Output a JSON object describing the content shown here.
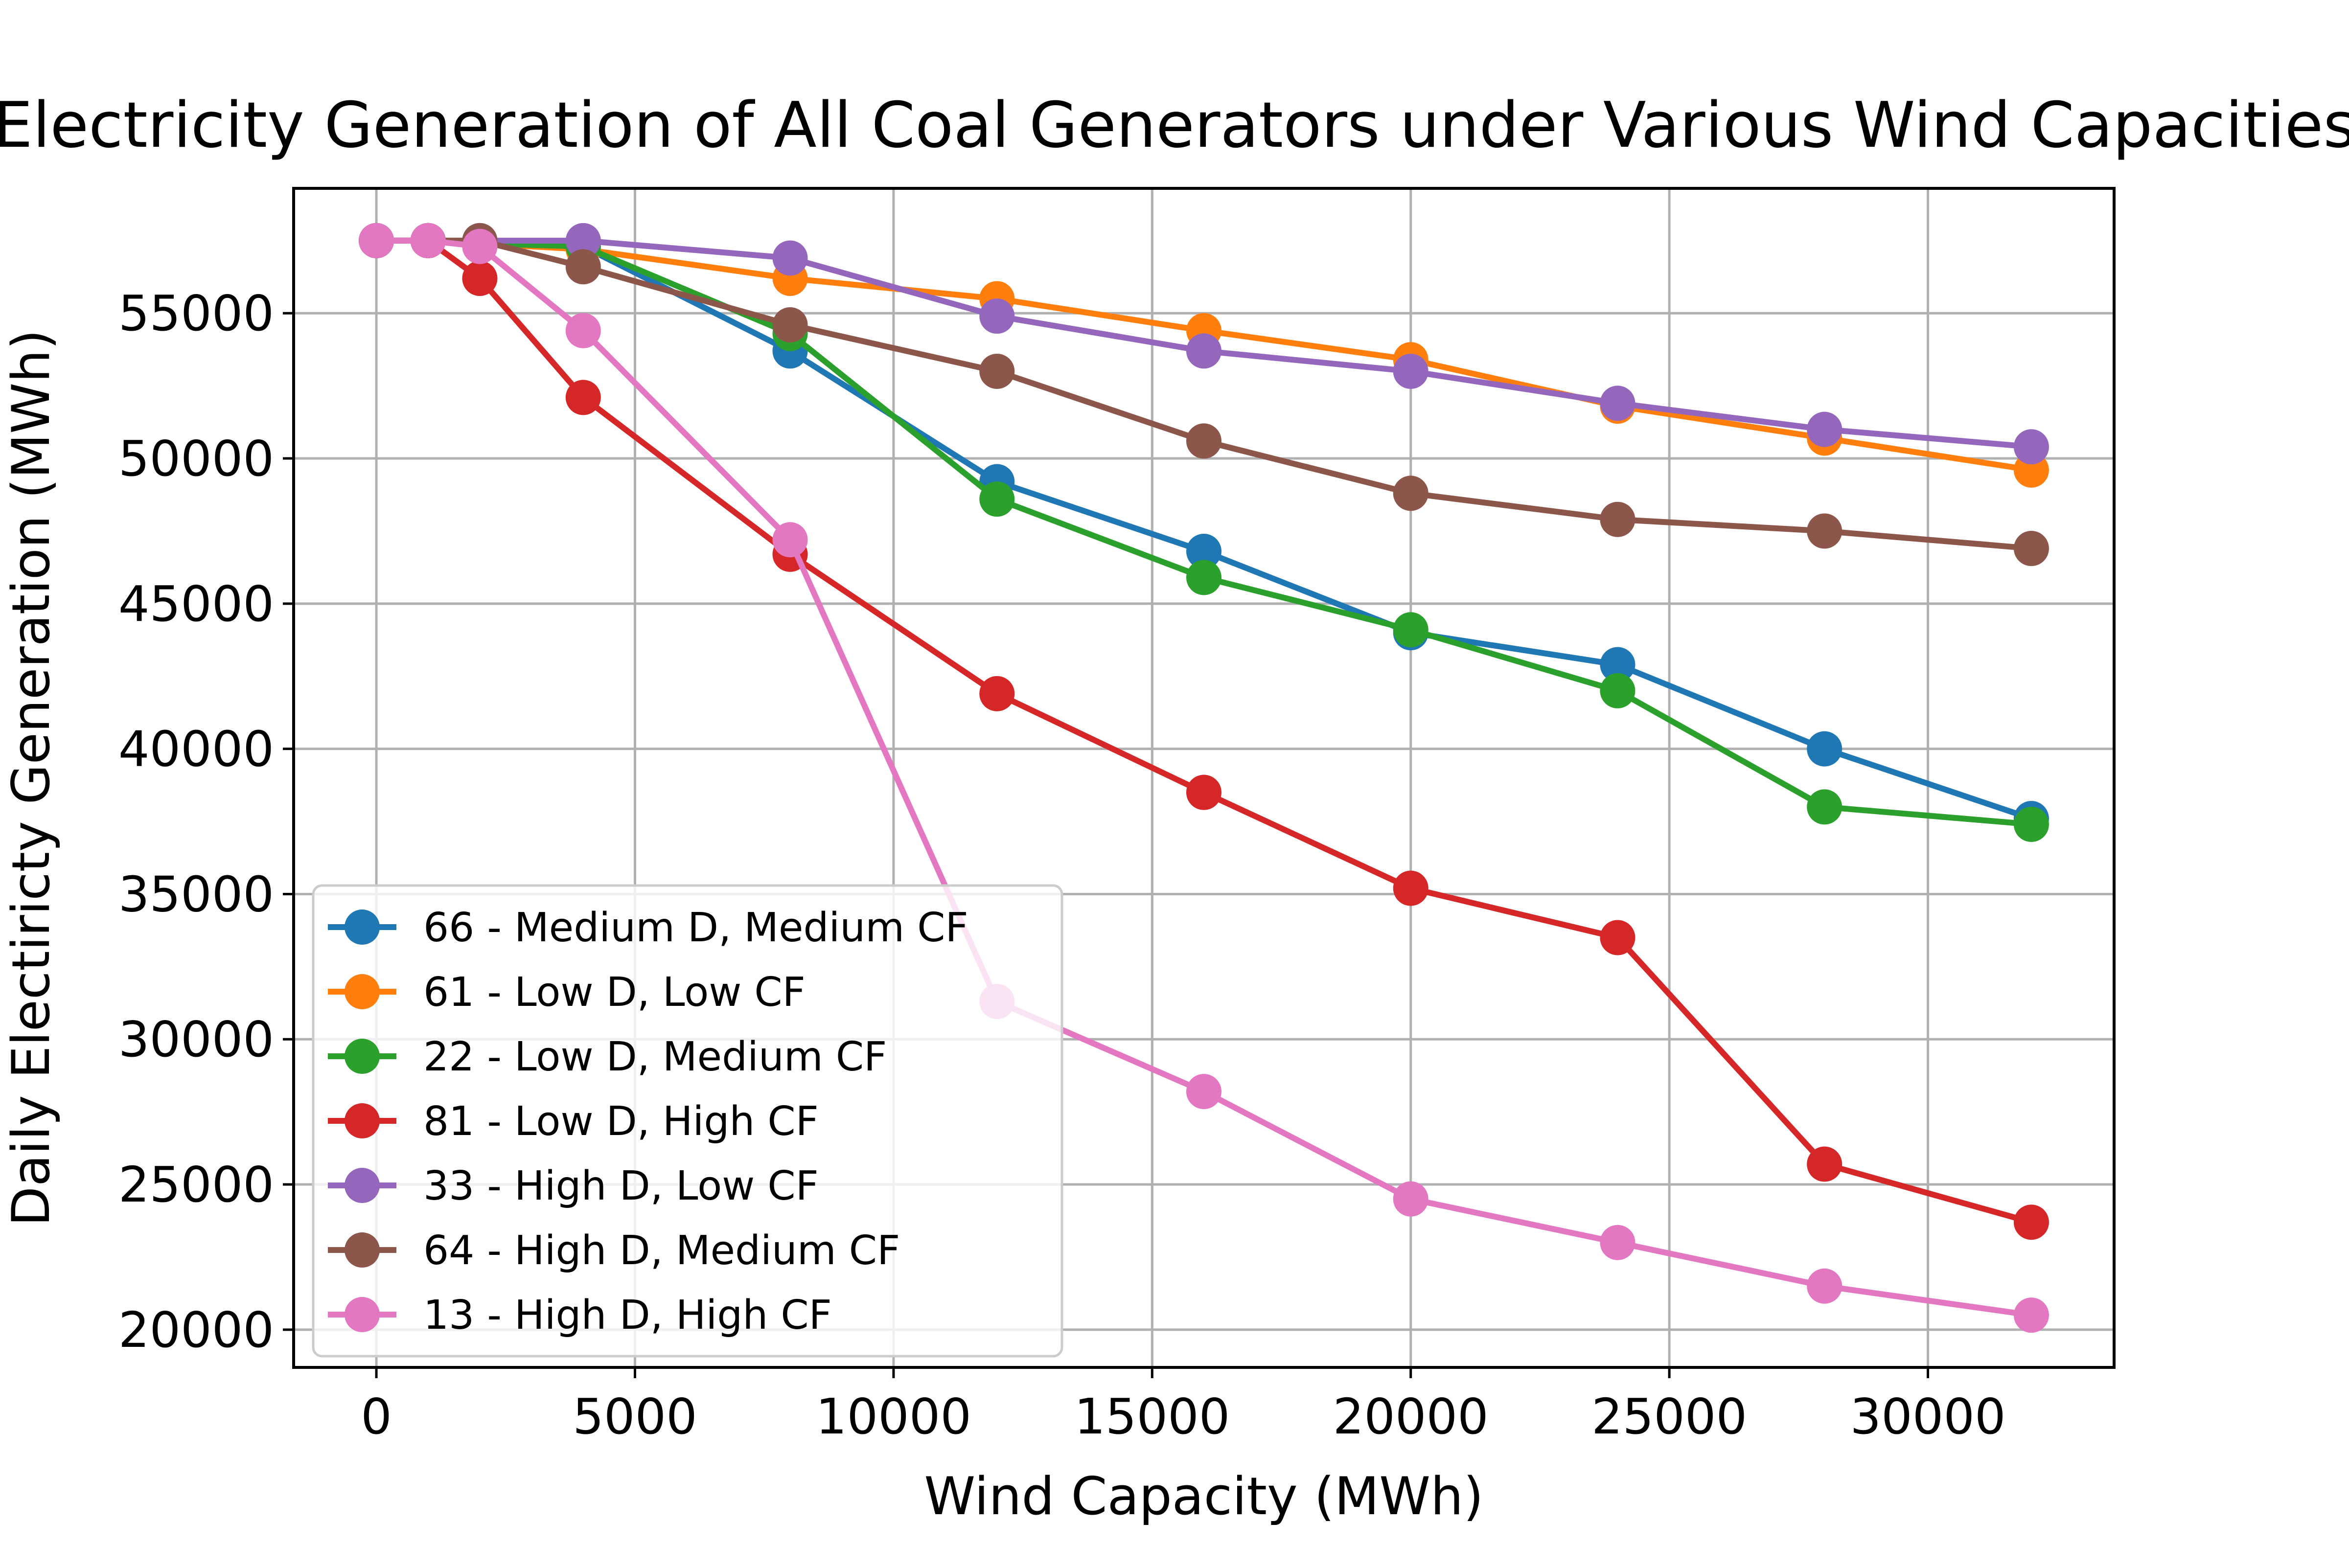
{
  "chart_data": {
    "type": "line",
    "title": "Electricity Generation of All Coal Generators under Various Wind Capacities",
    "xlabel": "Wind Capacity (MWh)",
    "ylabel": "Daily Electiricty Generation (MWh)",
    "xlim": [
      -1600,
      33600
    ],
    "ylim": [
      18700,
      59300
    ],
    "xticks": [
      0,
      5000,
      10000,
      15000,
      20000,
      25000,
      30000
    ],
    "yticks": [
      20000,
      25000,
      30000,
      35000,
      40000,
      45000,
      50000,
      55000
    ],
    "grid": true,
    "legend_position": "lower-left",
    "series": [
      {
        "name": "66 - Medium D, Medium CF",
        "color": "#1f77b4",
        "x": [
          0,
          1000,
          2000,
          4000,
          8000,
          12000,
          16000,
          20000,
          24000,
          28000,
          32000
        ],
        "y": [
          57500,
          57500,
          57400,
          57300,
          53700,
          49200,
          46800,
          44000,
          42900,
          40000,
          37600
        ]
      },
      {
        "name": "61 - Low D, Low CF",
        "color": "#ff7f0e",
        "x": [
          0,
          1000,
          2000,
          4000,
          8000,
          12000,
          16000,
          20000,
          24000,
          28000,
          32000
        ],
        "y": [
          57500,
          57500,
          57400,
          57200,
          56200,
          55500,
          54400,
          53400,
          51800,
          50700,
          49600
        ]
      },
      {
        "name": "22 - Low D, Medium CF",
        "color": "#2ca02c",
        "x": [
          0,
          1000,
          2000,
          4000,
          8000,
          12000,
          16000,
          20000,
          24000,
          28000,
          32000
        ],
        "y": [
          57500,
          57500,
          57400,
          57300,
          54300,
          48600,
          45900,
          44100,
          42000,
          38000,
          37400
        ]
      },
      {
        "name": "81 - Low D, High CF",
        "color": "#d62728",
        "x": [
          0,
          1000,
          2000,
          4000,
          8000,
          12000,
          16000,
          20000,
          24000,
          28000,
          32000
        ],
        "y": [
          57500,
          57500,
          56200,
          52100,
          46700,
          41900,
          38500,
          35200,
          33500,
          25700,
          23700
        ]
      },
      {
        "name": "33 - High D, Low CF",
        "color": "#9467bd",
        "x": [
          0,
          1000,
          2000,
          4000,
          8000,
          12000,
          16000,
          20000,
          24000,
          28000,
          32000
        ],
        "y": [
          57500,
          57500,
          57500,
          57500,
          56900,
          54900,
          53700,
          53000,
          51900,
          51000,
          50400
        ]
      },
      {
        "name": "64 - High D, Medium CF",
        "color": "#8c564b",
        "x": [
          0,
          1000,
          2000,
          4000,
          8000,
          12000,
          16000,
          20000,
          24000,
          28000,
          32000
        ],
        "y": [
          57500,
          57500,
          57500,
          56600,
          54600,
          53000,
          50600,
          48800,
          47900,
          47500,
          46900
        ]
      },
      {
        "name": "13 - High D, High CF",
        "color": "#e377c2",
        "x": [
          0,
          1000,
          2000,
          4000,
          8000,
          12000,
          16000,
          20000,
          24000,
          28000,
          32000
        ],
        "y": [
          57500,
          57500,
          57300,
          54400,
          47200,
          31300,
          28200,
          24500,
          23000,
          21500,
          20500
        ]
      }
    ]
  }
}
